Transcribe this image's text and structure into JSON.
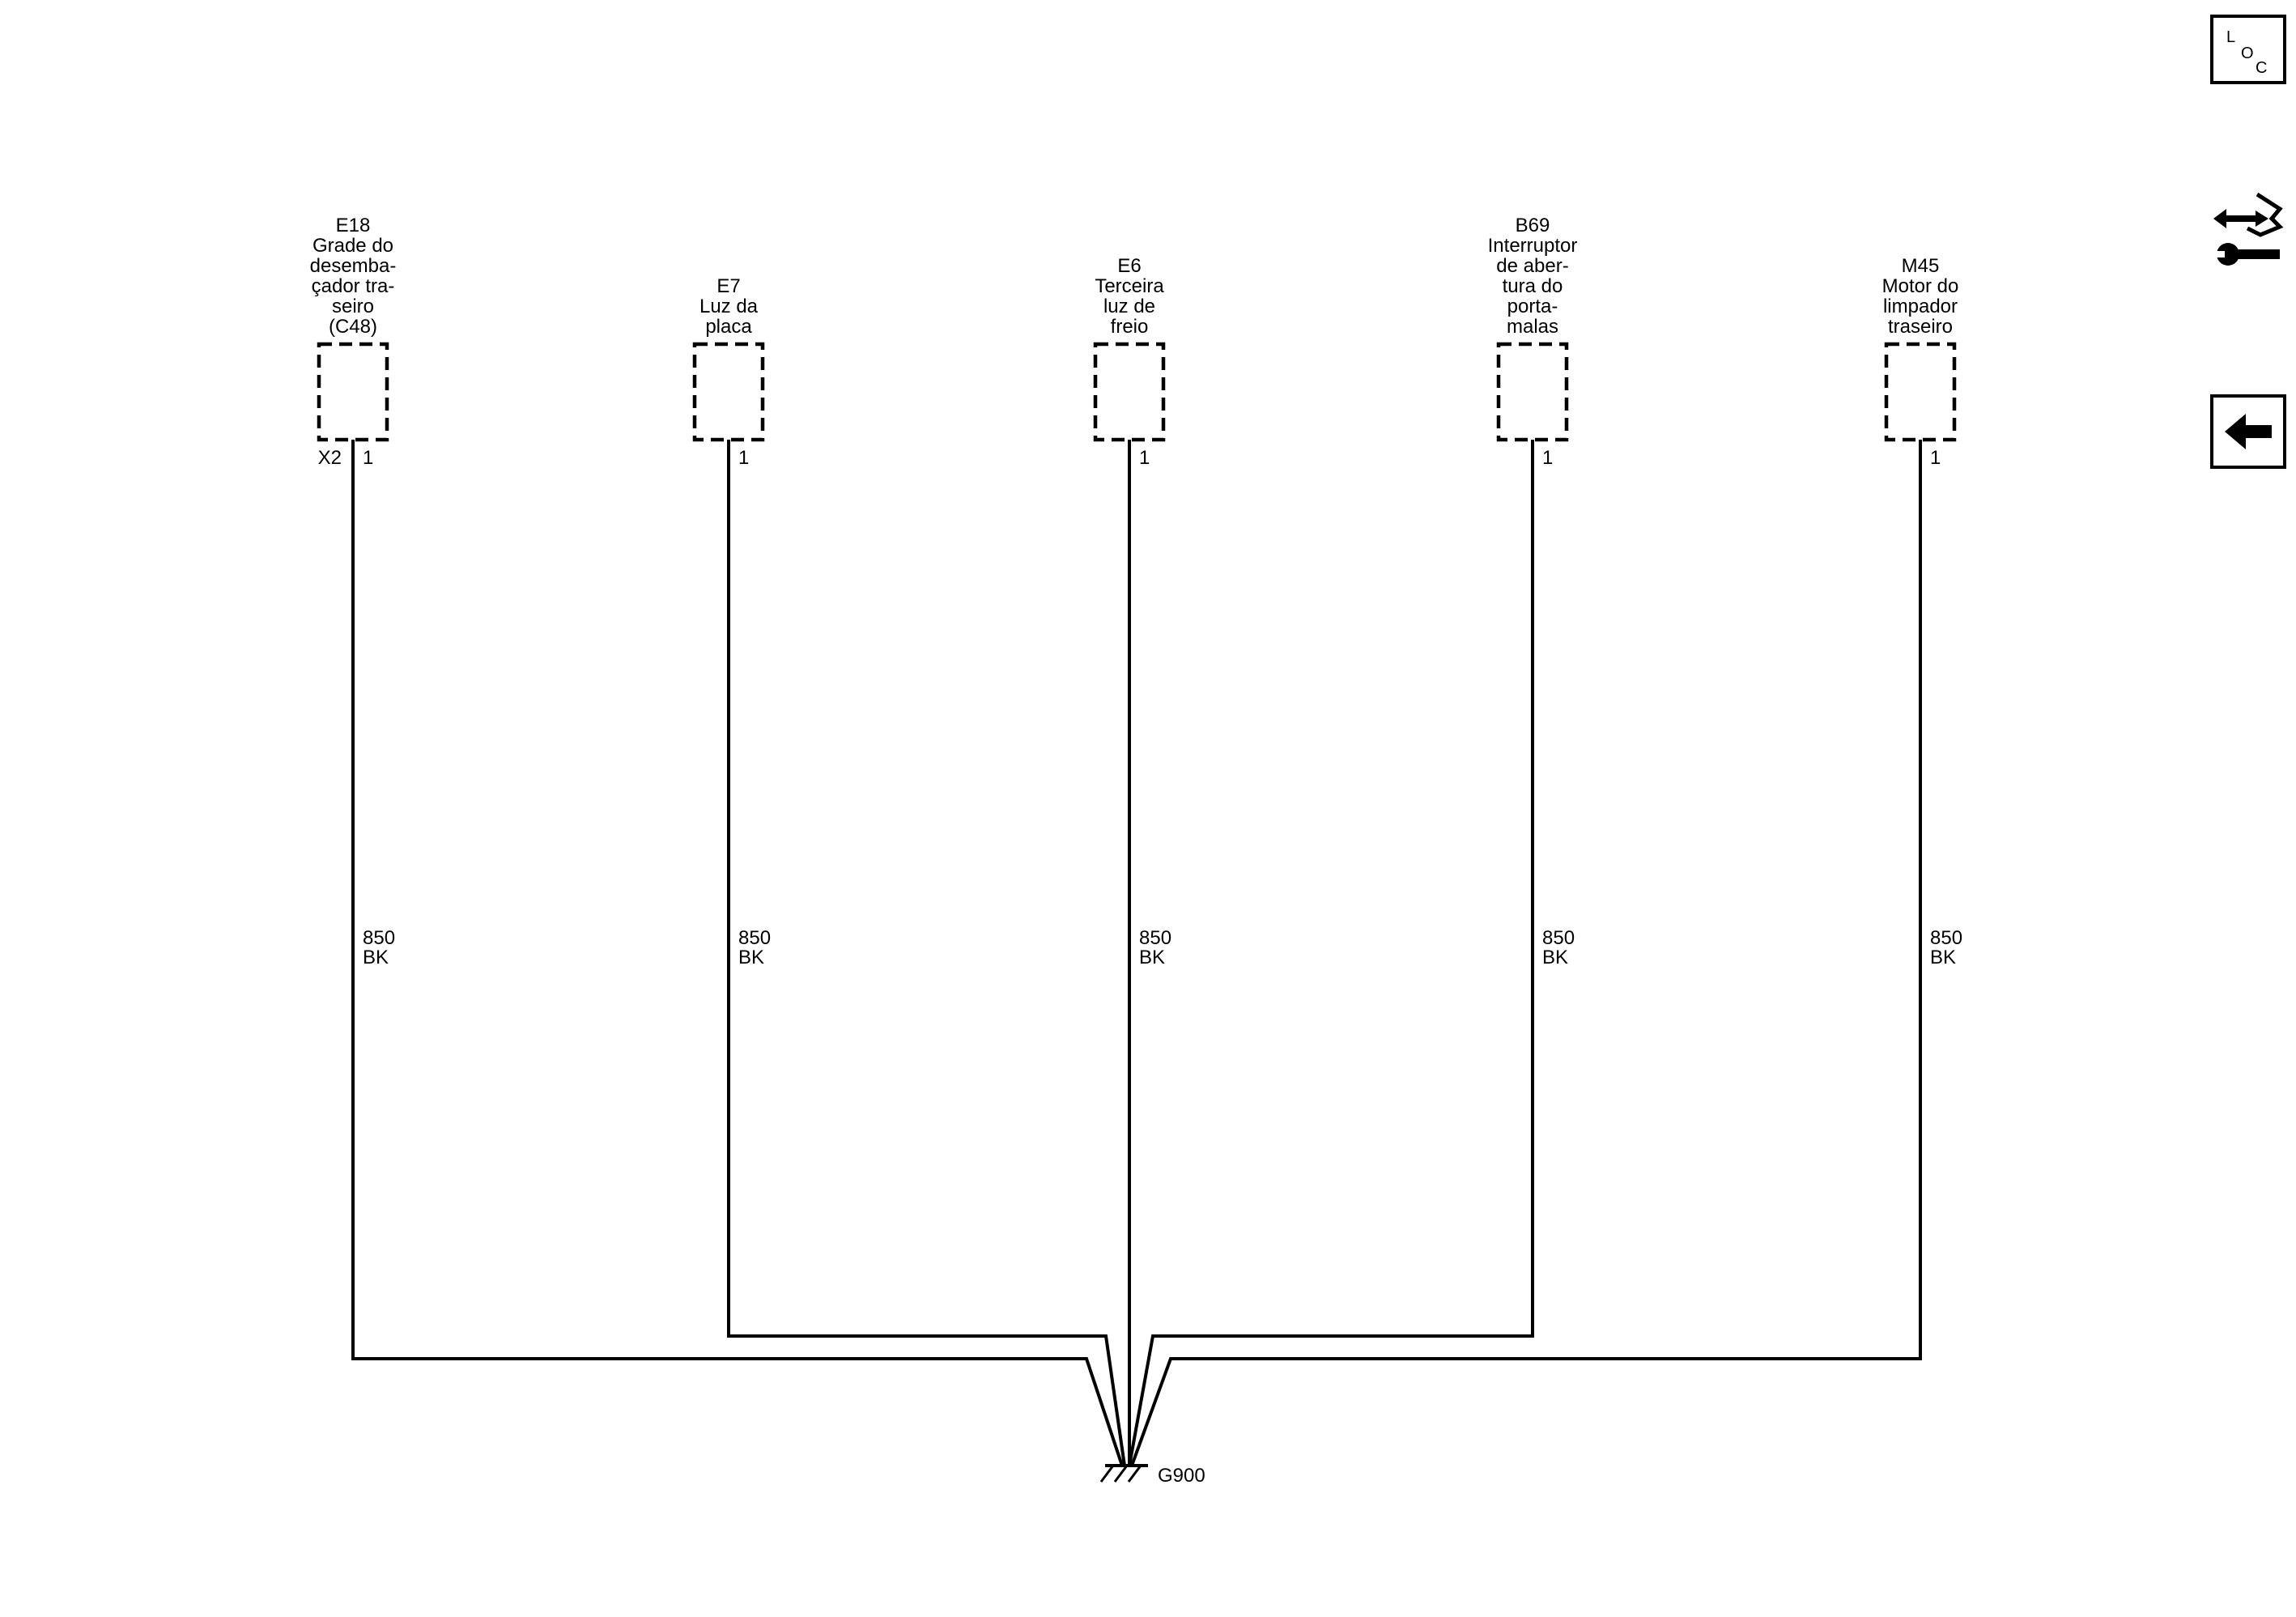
{
  "components": [
    {
      "id": "E18",
      "name_lines": [
        "Grade do",
        "desemba-",
        "çador tra-",
        "seiro",
        "(C48)"
      ],
      "connector": "X2",
      "pin": "1",
      "circuit": "850",
      "color": "BK"
    },
    {
      "id": "E7",
      "name_lines": [
        "Luz da",
        "placa"
      ],
      "connector": "",
      "pin": "1",
      "circuit": "850",
      "color": "BK"
    },
    {
      "id": "E6",
      "name_lines": [
        "Terceira",
        "luz de",
        "freio"
      ],
      "connector": "",
      "pin": "1",
      "circuit": "850",
      "color": "BK"
    },
    {
      "id": "B69",
      "name_lines": [
        "Interruptor",
        "de aber-",
        "tura do",
        "porta-",
        "malas"
      ],
      "connector": "",
      "pin": "1",
      "circuit": "850",
      "color": "BK"
    },
    {
      "id": "M45",
      "name_lines": [
        "Motor do",
        "limpador",
        "traseiro"
      ],
      "connector": "",
      "pin": "1",
      "circuit": "850",
      "color": "BK"
    }
  ],
  "ground": {
    "id": "G900"
  },
  "side_buttons": {
    "loc": {
      "letters": [
        "L",
        "O",
        "C"
      ],
      "icon": "loc-icon"
    },
    "service": {
      "icon": "wrench-arrows-icon"
    },
    "back": {
      "icon": "back-arrow-icon"
    }
  },
  "colors": {
    "line": "#000000",
    "background": "#ffffff"
  }
}
